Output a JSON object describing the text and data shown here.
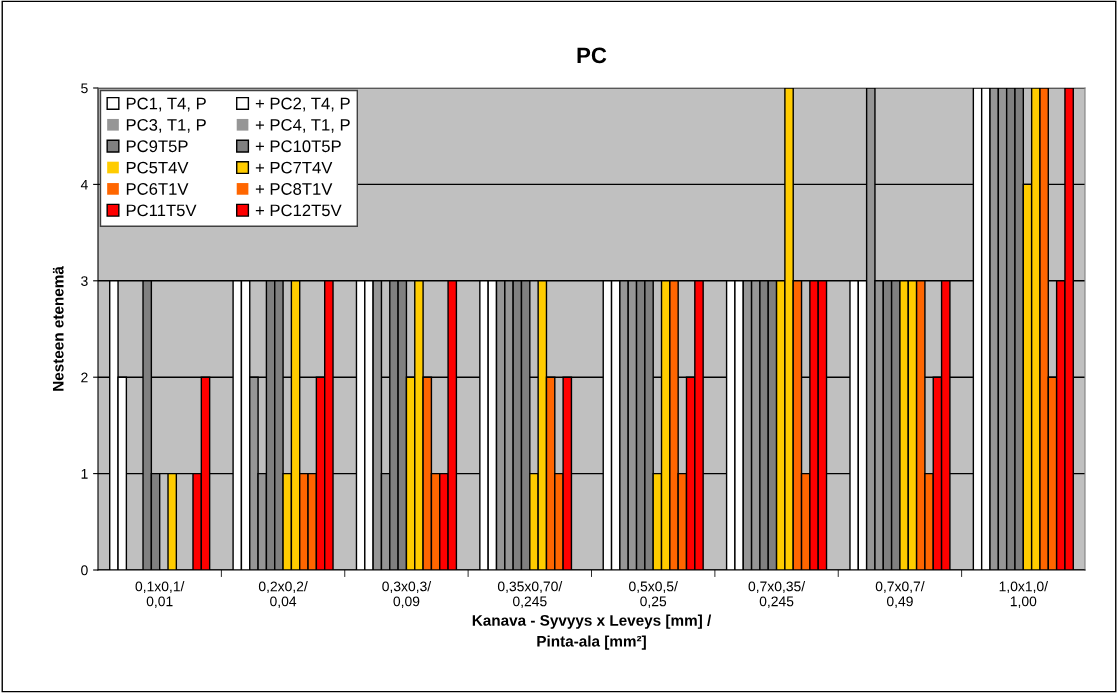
{
  "chart_data": {
    "type": "bar",
    "title": "PC",
    "xlabel": "Kanava - Syvyys x Leveys [mm] /\nPinta-ala [mm²]",
    "ylabel": "Nesteen etenemä",
    "categories": [
      "0,1x0,1/\n0,01",
      "0,2x0,2/\n0,04",
      "0,3x0,3/\n0,09",
      "0,35x0,70/\n0,245",
      "0,5x0,5/\n0,25",
      "0,7x0,35/\n0,245",
      "0,7x0,7/\n0,49",
      "1,0x1,0/\n1,00"
    ],
    "series": [
      {
        "name": "PC1, T4, P",
        "color": "#ffffff",
        "values": [
          3,
          3,
          3,
          3,
          3,
          3,
          3,
          5
        ]
      },
      {
        "name": "+ PC2, T4, P",
        "color": "#ffffff",
        "values": [
          2,
          3,
          3,
          3,
          3,
          3,
          3,
          5
        ]
      },
      {
        "name": "PC3, T1, P",
        "color": "#969696",
        "values": [
          0,
          2,
          3,
          3,
          3,
          3,
          5,
          5
        ]
      },
      {
        "name": "+ PC4, T1, P",
        "color": "#969696",
        "values": [
          0,
          1,
          1,
          3,
          3,
          3,
          3,
          5
        ]
      },
      {
        "name": "PC9T5P",
        "color": "#808080",
        "values": [
          3,
          3,
          3,
          3,
          3,
          3,
          3,
          5
        ]
      },
      {
        "name": "+ PC10T5P",
        "color": "#808080",
        "values": [
          1,
          3,
          3,
          3,
          3,
          3,
          3,
          5
        ]
      },
      {
        "name": "PC5T4V",
        "color": "#ffcc00",
        "values": [
          0,
          1,
          2,
          1,
          1,
          3,
          3,
          4
        ]
      },
      {
        "name": "+ PC7T4V",
        "color": "#ffcc00",
        "values": [
          1,
          3,
          3,
          3,
          3,
          5,
          3,
          5
        ]
      },
      {
        "name": "PC6T1V",
        "color": "#ff6600",
        "values": [
          0,
          1,
          2,
          2,
          3,
          3,
          3,
          5
        ]
      },
      {
        "name": "+ PC8T1V",
        "color": "#ff6600",
        "values": [
          0,
          1,
          1,
          1,
          1,
          1,
          1,
          2
        ]
      },
      {
        "name": "PC11T5V",
        "color": "#ff0000",
        "values": [
          1,
          2,
          1,
          2,
          2,
          3,
          2,
          3
        ]
      },
      {
        "name": "+ PC12T5V",
        "color": "#ff0000",
        "values": [
          2,
          3,
          3,
          0,
          3,
          3,
          3,
          5
        ]
      }
    ],
    "ylim": [
      0,
      5
    ],
    "yticks": [
      0,
      1,
      2,
      3,
      4,
      5
    ],
    "grid": "y",
    "legend": "top left"
  }
}
